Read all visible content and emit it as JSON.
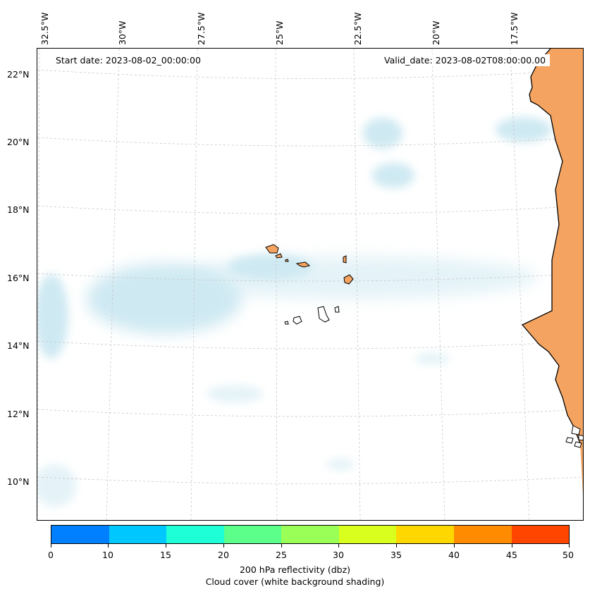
{
  "map": {
    "start_date": "Start date: 2023-08-02_00:00:00",
    "valid_date": "Valid_date: 2023-08-02T08:00:00.00",
    "longitude_labels": [
      "32.5°W",
      "30°W",
      "27.5°W",
      "25°W",
      "22.5°W",
      "20°W",
      "17.5°W"
    ],
    "latitude_labels": [
      "22°N",
      "20°N",
      "18°N",
      "16°N",
      "14°N",
      "12°N",
      "10°N"
    ],
    "land_fill_color": "#f4a460",
    "cloud_color": "#a8d8e8"
  },
  "colorbar": {
    "ticks": [
      "0",
      "10",
      "15",
      "20",
      "25",
      "30",
      "35",
      "40",
      "45",
      "50"
    ],
    "colors": [
      "#0080ff",
      "#00c8ff",
      "#1effd8",
      "#5cff8a",
      "#9aff56",
      "#d8ff1e",
      "#ffd700",
      "#ff8c00",
      "#ff4500"
    ],
    "label": "200 hPa reflectivity (dbz)",
    "sublabel": "Cloud cover (white background shading)"
  }
}
